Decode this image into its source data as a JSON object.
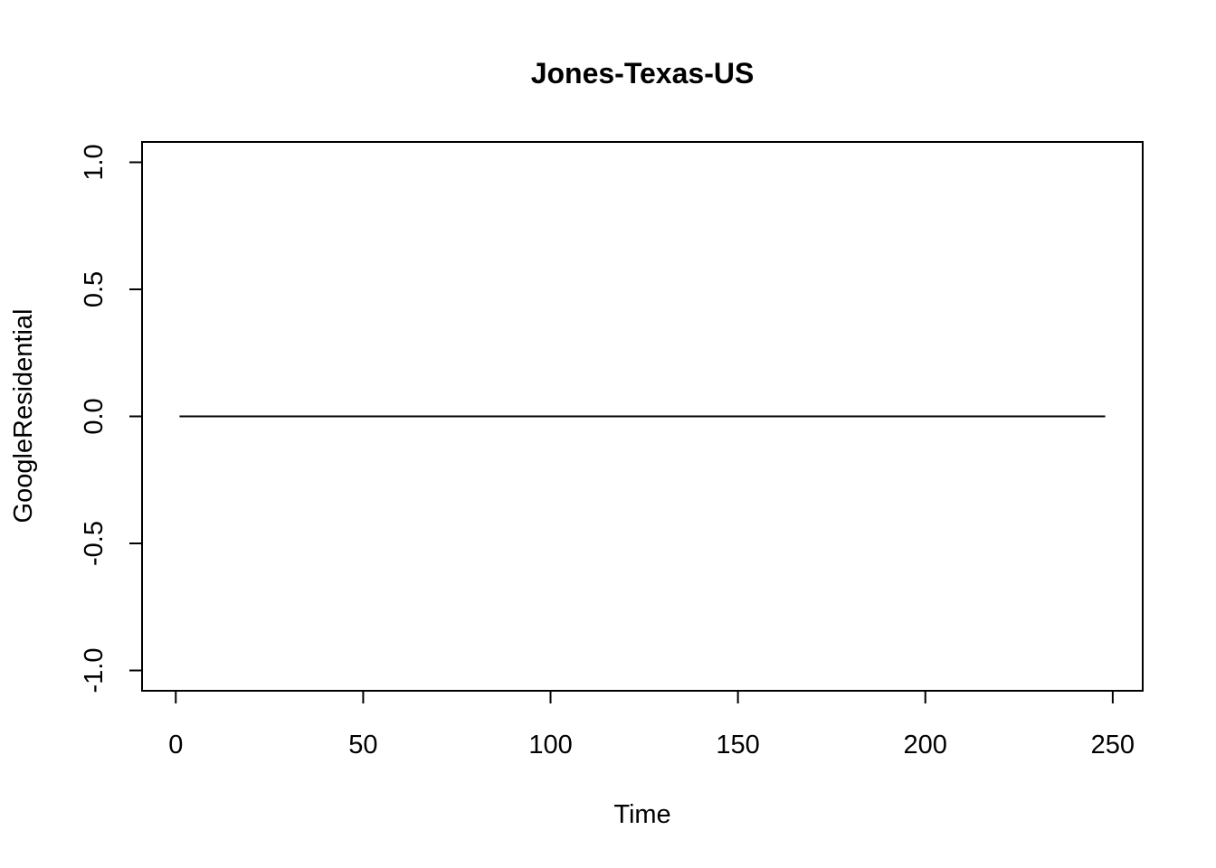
{
  "chart_data": {
    "type": "line",
    "title": "Jones-Texas-US",
    "xlabel": "Time",
    "ylabel": "GoogleResidential",
    "xlim": [
      -9,
      258
    ],
    "ylim": [
      -1.08,
      1.08
    ],
    "x_ticks": [
      0,
      50,
      100,
      150,
      200,
      250
    ],
    "x_tick_labels": [
      "0",
      "50",
      "100",
      "150",
      "200",
      "250"
    ],
    "y_ticks": [
      -1.0,
      -0.5,
      0.0,
      0.5,
      1.0
    ],
    "y_tick_labels": [
      "-1.0",
      "-0.5",
      "0.0",
      "0.5",
      "1.0"
    ],
    "grid": false,
    "series": [
      {
        "x": [
          1,
          248
        ],
        "y": [
          0,
          0
        ],
        "color": "#000000"
      }
    ]
  }
}
